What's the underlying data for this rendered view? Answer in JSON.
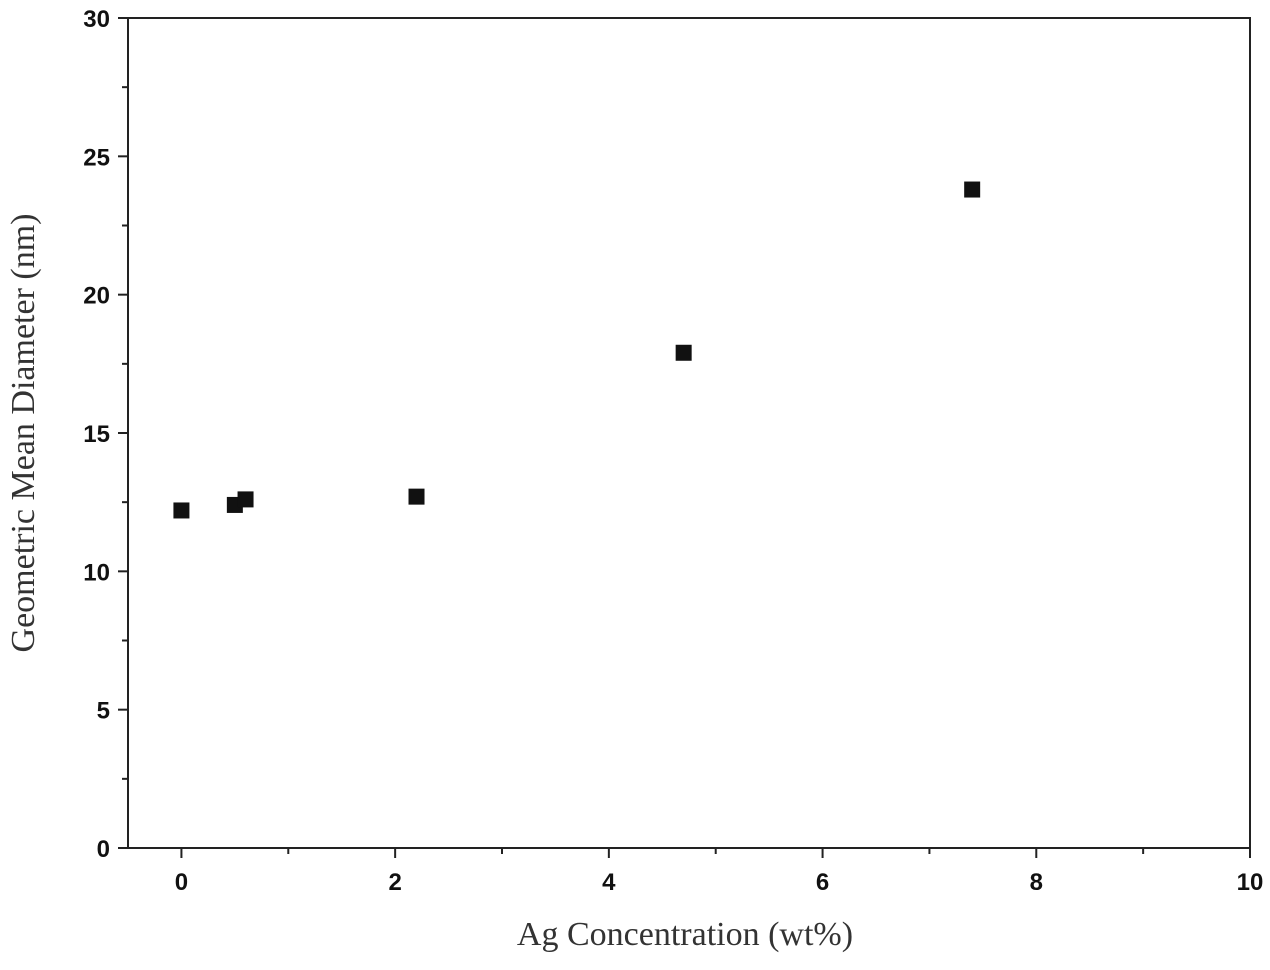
{
  "chart_data": {
    "type": "scatter",
    "x_label": "Ag Concentration (wt%)",
    "y_label": "Geometric Mean Diameter  (nm)",
    "x": [
      0,
      0.5,
      0.6,
      2.2,
      4.7,
      7.4
    ],
    "series": [
      {
        "color": "#111111",
        "values": [
          12.2,
          12.4,
          12.6,
          12.7,
          17.9,
          23.8
        ]
      }
    ],
    "xlim": [
      -0.5,
      10
    ],
    "xticks": [
      0,
      2,
      4,
      6,
      8,
      10
    ],
    "xminor_ticks": [
      1,
      3,
      5,
      7,
      9
    ],
    "ylim": [
      0,
      30
    ],
    "yticks": [
      0,
      5,
      10,
      15,
      20,
      25,
      30
    ],
    "yminor_ticks": [
      2.5,
      7.5,
      12.5,
      17.5,
      22.5,
      27.5
    ],
    "grid": false,
    "marker": "square"
  }
}
